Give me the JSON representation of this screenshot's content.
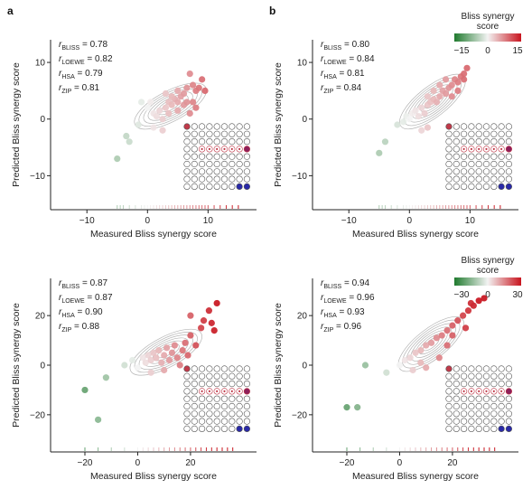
{
  "panel_labels": [
    "a",
    "b"
  ],
  "colorbars": [
    {
      "title_line1": "Bliss synergy",
      "title_line2": "score",
      "ticks": [
        "−15",
        "0",
        "15"
      ]
    },
    {
      "title_line1": "Bliss synergy",
      "title_line2": "score",
      "ticks": [
        "−30",
        "0",
        "30"
      ]
    }
  ],
  "colors": {
    "negative": "#1f7a2e",
    "neutral": "#f3f3f3",
    "positive": "#c8141e",
    "contour": "#b5b5b5",
    "inset_high": "#8e1f5a",
    "inset_low": "#2a2aa8",
    "inset_ring": "#c03a4a"
  },
  "chart_data": [
    {
      "type": "scatter",
      "panel": "a",
      "xlabel": "Measured Bliss synergy score",
      "ylabel": "Predicted Bliss synergy score",
      "xlim": [
        -16,
        18
      ],
      "ylim": [
        -16,
        14
      ],
      "xticks": [
        -10,
        0,
        10
      ],
      "xtick_labels": [
        "−10",
        "0",
        "10"
      ],
      "yticks": [
        -10,
        0,
        10
      ],
      "ytick_labels": [
        "−10",
        "0",
        "10"
      ],
      "annotations": [
        {
          "sub": "BLISS",
          "value": "0.78"
        },
        {
          "sub": "LOEWE",
          "value": "0.82"
        },
        {
          "sub": "HSA",
          "value": "0.79"
        },
        {
          "sub": "ZIP",
          "value": "0.81"
        }
      ],
      "points": [
        [
          -5,
          -7
        ],
        [
          -3.5,
          -3
        ],
        [
          -3,
          -4
        ],
        [
          -1.5,
          -1
        ],
        [
          -1,
          3
        ],
        [
          0,
          2
        ],
        [
          1,
          1
        ],
        [
          1.5,
          0.5
        ],
        [
          2,
          1.5
        ],
        [
          2.5,
          0
        ],
        [
          3,
          2
        ],
        [
          3.5,
          1
        ],
        [
          3.5,
          3
        ],
        [
          4,
          2.5
        ],
        [
          4.5,
          3.5
        ],
        [
          5,
          1.5
        ],
        [
          5,
          3
        ],
        [
          5.5,
          4
        ],
        [
          6,
          2.5
        ],
        [
          6,
          4.5
        ],
        [
          6.5,
          3
        ],
        [
          7,
          8
        ],
        [
          7.5,
          6
        ],
        [
          7.5,
          3
        ],
        [
          8,
          5
        ],
        [
          8,
          2
        ],
        [
          8.5,
          5.5
        ],
        [
          9,
          7
        ],
        [
          9.5,
          5
        ],
        [
          2.5,
          -2
        ],
        [
          1,
          -1.5
        ],
        [
          0.5,
          3
        ],
        [
          4,
          4
        ],
        [
          3,
          4.5
        ],
        [
          5,
          5
        ],
        [
          6.5,
          5.5
        ],
        [
          7,
          1
        ]
      ],
      "rug": [
        -5,
        -4.5,
        -4,
        -3,
        -2,
        -1,
        -0.5,
        0,
        0.5,
        1,
        1.5,
        2,
        2.5,
        3,
        3.5,
        4,
        4.5,
        5,
        5.5,
        6,
        6.5,
        7,
        7.5,
        8,
        8.5,
        9,
        9.5,
        10,
        11,
        12,
        13,
        14,
        15
      ],
      "score_range": 15
    },
    {
      "type": "scatter",
      "panel": "b",
      "xlabel": "Measured Bliss synergy score",
      "ylabel": "Predicted Bliss synergy score",
      "xlim": [
        -16,
        18
      ],
      "ylim": [
        -16,
        14
      ],
      "xticks": [
        -10,
        0,
        10
      ],
      "xtick_labels": [
        "−10",
        "0",
        "10"
      ],
      "yticks": [
        -10,
        0,
        10
      ],
      "ytick_labels": [
        "−10",
        "0",
        "10"
      ],
      "annotations": [
        {
          "sub": "BLISS",
          "value": "0.80"
        },
        {
          "sub": "LOEWE",
          "value": "0.84"
        },
        {
          "sub": "HSA",
          "value": "0.81"
        },
        {
          "sub": "ZIP",
          "value": "0.84"
        }
      ],
      "points": [
        [
          -5,
          -6
        ],
        [
          -4,
          -4
        ],
        [
          -2,
          -1
        ],
        [
          -1,
          -0.5
        ],
        [
          -0.5,
          0.5
        ],
        [
          0,
          0
        ],
        [
          0.5,
          1
        ],
        [
          1,
          1.5
        ],
        [
          1.5,
          0.5
        ],
        [
          2,
          2
        ],
        [
          2.5,
          1
        ],
        [
          3,
          2.5
        ],
        [
          3.5,
          3
        ],
        [
          4,
          3.5
        ],
        [
          4.5,
          3
        ],
        [
          5,
          4
        ],
        [
          5.5,
          5
        ],
        [
          6,
          4.5
        ],
        [
          6.5,
          5.5
        ],
        [
          7,
          6
        ],
        [
          7.5,
          7
        ],
        [
          8,
          6.5
        ],
        [
          8.5,
          7.5
        ],
        [
          9,
          8
        ],
        [
          2,
          -2
        ],
        [
          3,
          -1.5
        ],
        [
          3,
          4
        ],
        [
          4,
          5
        ],
        [
          5,
          6
        ],
        [
          6,
          7
        ],
        [
          7,
          4
        ],
        [
          8,
          5
        ],
        [
          9,
          7
        ],
        [
          9.5,
          9
        ]
      ],
      "rug": [
        -5,
        -4.5,
        -4,
        -3,
        -2,
        -1,
        -0.5,
        0,
        0.5,
        1,
        1.5,
        2,
        2.5,
        3,
        3.5,
        4,
        4.5,
        5,
        5.5,
        6,
        6.5,
        7,
        7.5,
        8,
        8.5,
        9,
        9.5,
        10,
        11,
        12,
        13,
        14,
        15
      ],
      "score_range": 15
    },
    {
      "type": "scatter",
      "panel": "a",
      "xlabel": "Measured Bliss synergy score",
      "ylabel": "Predicted Bliss synergy score",
      "xlim": [
        -33,
        45
      ],
      "ylim": [
        -35,
        35
      ],
      "xticks": [
        -20,
        0,
        20
      ],
      "xtick_labels": [
        "−20",
        "0",
        "20"
      ],
      "yticks": [
        -20,
        0,
        20
      ],
      "ytick_labels": [
        "−20",
        "0",
        "20"
      ],
      "annotations": [
        {
          "sub": "BLISS",
          "value": "0.87"
        },
        {
          "sub": "LOEWE",
          "value": "0.87"
        },
        {
          "sub": "HSA",
          "value": "0.90"
        },
        {
          "sub": "ZIP",
          "value": "0.88"
        }
      ],
      "points": [
        [
          -20,
          -10
        ],
        [
          -15,
          -22
        ],
        [
          -12,
          -5
        ],
        [
          -5,
          0
        ],
        [
          -2,
          2
        ],
        [
          0,
          -1
        ],
        [
          2,
          3
        ],
        [
          3,
          1
        ],
        [
          4,
          4
        ],
        [
          5,
          2
        ],
        [
          6,
          5
        ],
        [
          7,
          3
        ],
        [
          8,
          6
        ],
        [
          9,
          1
        ],
        [
          10,
          4
        ],
        [
          11,
          7
        ],
        [
          12,
          2
        ],
        [
          13,
          5
        ],
        [
          14,
          8
        ],
        [
          15,
          3
        ],
        [
          16,
          0
        ],
        [
          17,
          6
        ],
        [
          18,
          9
        ],
        [
          19,
          4
        ],
        [
          20,
          12
        ],
        [
          22,
          8
        ],
        [
          24,
          15
        ],
        [
          25,
          18
        ],
        [
          27,
          22
        ],
        [
          28,
          17
        ],
        [
          29,
          14
        ],
        [
          30,
          25
        ],
        [
          20,
          20
        ],
        [
          10,
          -2
        ],
        [
          5,
          -3
        ]
      ],
      "rug": [
        -20,
        -15,
        -10,
        -5,
        0,
        2,
        4,
        6,
        8,
        10,
        12,
        14,
        16,
        18,
        20,
        22,
        24,
        26,
        28,
        30,
        32,
        34,
        36
      ],
      "score_range": 30
    },
    {
      "type": "scatter",
      "panel": "b",
      "xlabel": "Measured Bliss synergy score",
      "ylabel": "Predicted Bliss synergy score",
      "xlim": [
        -33,
        45
      ],
      "ylim": [
        -35,
        35
      ],
      "xticks": [
        -20,
        0,
        20
      ],
      "xtick_labels": [
        "−20",
        "0",
        "20"
      ],
      "yticks": [
        -20,
        0,
        20
      ],
      "ytick_labels": [
        "−20",
        "0",
        "20"
      ],
      "annotations": [
        {
          "sub": "BLISS",
          "value": "0.94"
        },
        {
          "sub": "LOEWE",
          "value": "0.96"
        },
        {
          "sub": "HSA",
          "value": "0.93"
        },
        {
          "sub": "ZIP",
          "value": "0.96"
        }
      ],
      "points": [
        [
          -20,
          -17
        ],
        [
          -16,
          -17
        ],
        [
          -13,
          0
        ],
        [
          -5,
          -3
        ],
        [
          0,
          0
        ],
        [
          2,
          2
        ],
        [
          4,
          3
        ],
        [
          6,
          5
        ],
        [
          8,
          6
        ],
        [
          10,
          8
        ],
        [
          12,
          9
        ],
        [
          14,
          11
        ],
        [
          16,
          12
        ],
        [
          18,
          14
        ],
        [
          20,
          16
        ],
        [
          22,
          18
        ],
        [
          24,
          20
        ],
        [
          26,
          22
        ],
        [
          28,
          24
        ],
        [
          30,
          26
        ],
        [
          32,
          27
        ],
        [
          10,
          -1
        ],
        [
          15,
          3
        ],
        [
          18,
          8
        ],
        [
          20,
          12
        ],
        [
          25,
          15
        ],
        [
          5,
          -2
        ],
        [
          8,
          1
        ],
        [
          27,
          25
        ]
      ],
      "rug": [
        -20,
        -15,
        -10,
        -5,
        0,
        2,
        4,
        6,
        8,
        10,
        12,
        14,
        16,
        18,
        20,
        22,
        24,
        26,
        28,
        30,
        32,
        34,
        36
      ],
      "score_range": 30
    }
  ]
}
